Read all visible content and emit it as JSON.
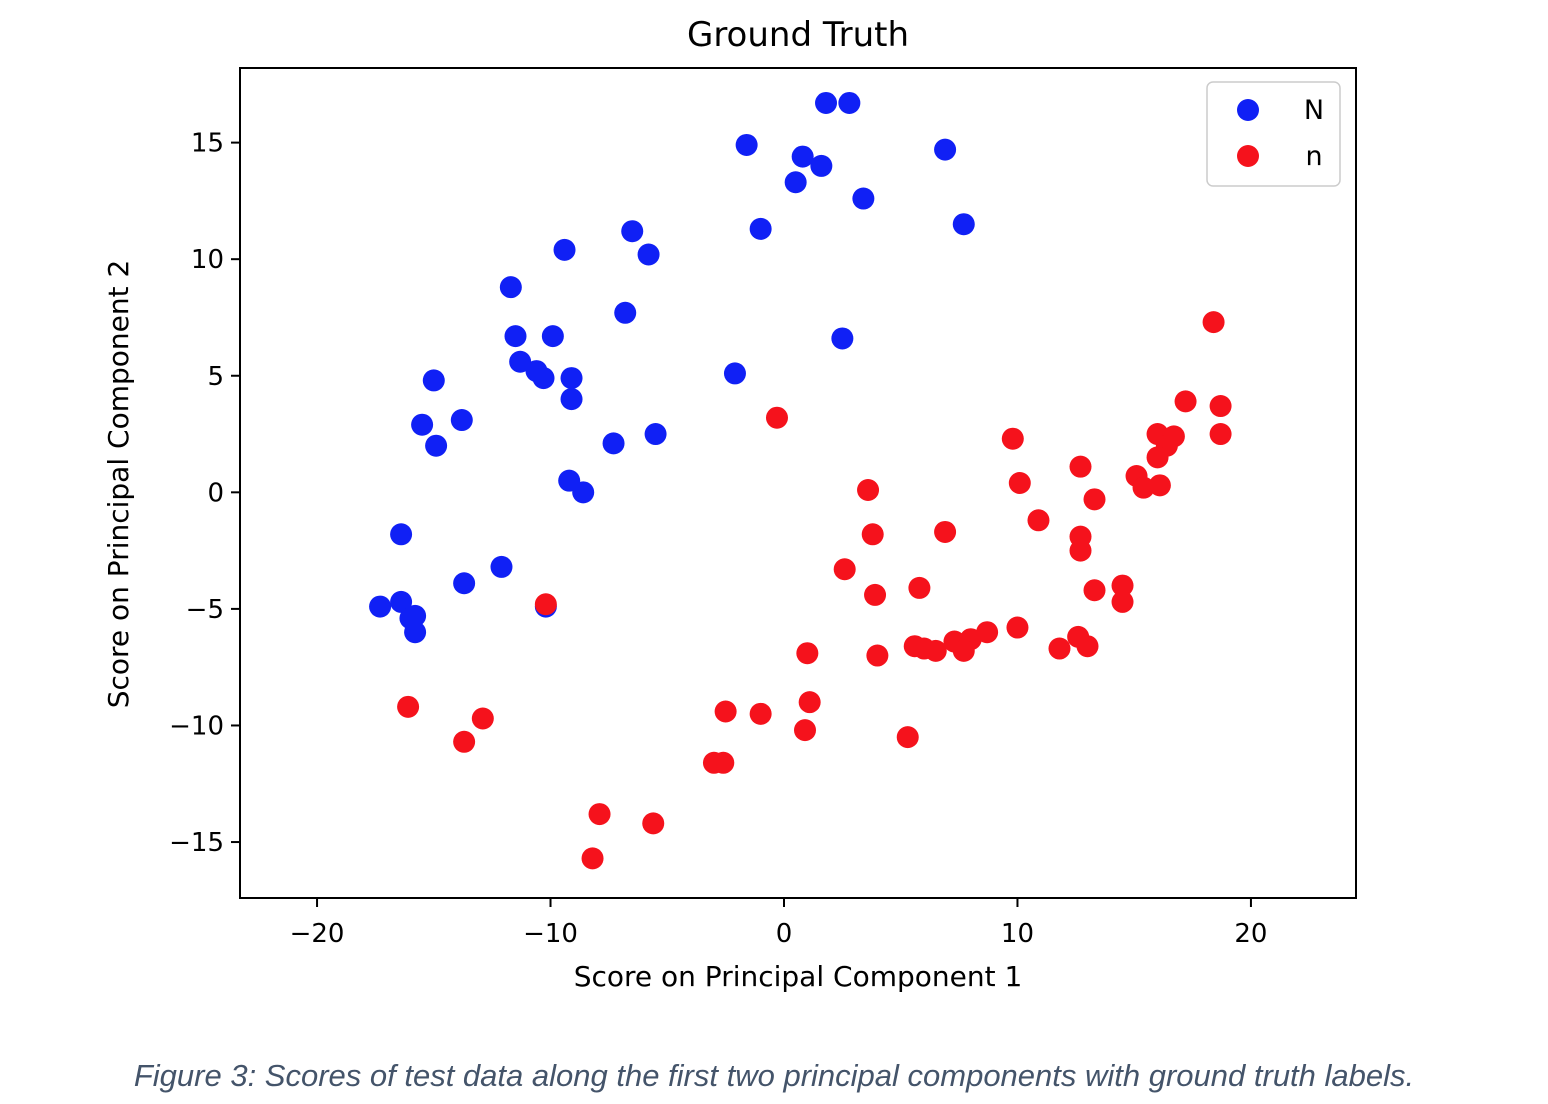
{
  "chart_data": {
    "type": "scatter",
    "title": "Ground Truth",
    "xlabel": "Score on Principal Component 1",
    "ylabel": "Score on Principal Component 2",
    "xlim": [
      -23.3,
      24.5
    ],
    "ylim": [
      -17.4,
      18.2
    ],
    "xticks": [
      -20,
      -10,
      0,
      10,
      20
    ],
    "yticks": [
      -15,
      -10,
      -5,
      0,
      5,
      10,
      15
    ],
    "grid": false,
    "legend_position": "top-right",
    "series": [
      {
        "name": "N",
        "color": "#1020f5",
        "points": [
          [
            1.8,
            16.7
          ],
          [
            2.8,
            16.7
          ],
          [
            -1.6,
            14.9
          ],
          [
            0.8,
            14.4
          ],
          [
            1.6,
            14.0
          ],
          [
            0.5,
            13.3
          ],
          [
            6.9,
            14.7
          ],
          [
            3.4,
            12.6
          ],
          [
            7.7,
            11.5
          ],
          [
            -1.0,
            11.3
          ],
          [
            -6.5,
            11.2
          ],
          [
            -5.8,
            10.2
          ],
          [
            -9.4,
            10.4
          ],
          [
            -11.7,
            8.8
          ],
          [
            -6.8,
            7.7
          ],
          [
            -11.5,
            6.7
          ],
          [
            -9.9,
            6.7
          ],
          [
            2.5,
            6.6
          ],
          [
            -11.3,
            5.6
          ],
          [
            -10.6,
            5.2
          ],
          [
            -10.3,
            4.9
          ],
          [
            -9.1,
            4.9
          ],
          [
            -2.1,
            5.1
          ],
          [
            -15.0,
            4.8
          ],
          [
            -9.1,
            4.0
          ],
          [
            -13.8,
            3.1
          ],
          [
            -15.5,
            2.9
          ],
          [
            -7.3,
            2.1
          ],
          [
            -5.5,
            2.5
          ],
          [
            -14.9,
            2.0
          ],
          [
            -9.2,
            0.5
          ],
          [
            -8.6,
            0.0
          ],
          [
            -16.4,
            -1.8
          ],
          [
            -12.1,
            -3.2
          ],
          [
            -13.7,
            -3.9
          ],
          [
            -17.3,
            -4.9
          ],
          [
            -16.4,
            -4.7
          ],
          [
            -16.0,
            -5.4
          ],
          [
            -15.8,
            -5.3
          ],
          [
            -15.8,
            -6.0
          ],
          [
            -10.2,
            -4.9
          ]
        ]
      },
      {
        "name": "n",
        "color": "#f5121c",
        "points": [
          [
            18.4,
            7.3
          ],
          [
            17.2,
            3.9
          ],
          [
            18.7,
            3.7
          ],
          [
            -0.3,
            3.2
          ],
          [
            16.0,
            2.5
          ],
          [
            16.7,
            2.4
          ],
          [
            9.8,
            2.3
          ],
          [
            18.7,
            2.5
          ],
          [
            16.4,
            2.0
          ],
          [
            16.0,
            1.5
          ],
          [
            12.7,
            1.1
          ],
          [
            15.1,
            0.7
          ],
          [
            15.4,
            0.2
          ],
          [
            16.1,
            0.3
          ],
          [
            10.1,
            0.4
          ],
          [
            3.6,
            0.1
          ],
          [
            13.3,
            -0.3
          ],
          [
            10.9,
            -1.2
          ],
          [
            3.8,
            -1.8
          ],
          [
            6.9,
            -1.7
          ],
          [
            12.7,
            -1.9
          ],
          [
            12.7,
            -2.5
          ],
          [
            2.6,
            -3.3
          ],
          [
            14.5,
            -4.0
          ],
          [
            5.8,
            -4.1
          ],
          [
            3.9,
            -4.4
          ],
          [
            13.3,
            -4.2
          ],
          [
            14.5,
            -4.7
          ],
          [
            -10.2,
            -4.8
          ],
          [
            10.0,
            -5.8
          ],
          [
            8.7,
            -6.0
          ],
          [
            12.6,
            -6.2
          ],
          [
            7.3,
            -6.4
          ],
          [
            8.0,
            -6.3
          ],
          [
            5.6,
            -6.6
          ],
          [
            6.0,
            -6.7
          ],
          [
            6.5,
            -6.8
          ],
          [
            7.7,
            -6.8
          ],
          [
            11.8,
            -6.7
          ],
          [
            13.0,
            -6.6
          ],
          [
            1.0,
            -6.9
          ],
          [
            4.0,
            -7.0
          ],
          [
            1.1,
            -9.0
          ],
          [
            -2.5,
            -9.4
          ],
          [
            -1.0,
            -9.5
          ],
          [
            -16.1,
            -9.2
          ],
          [
            -12.9,
            -9.7
          ],
          [
            0.9,
            -10.2
          ],
          [
            5.3,
            -10.5
          ],
          [
            -13.7,
            -10.7
          ],
          [
            -3.0,
            -11.6
          ],
          [
            -2.6,
            -11.6
          ],
          [
            -7.9,
            -13.8
          ],
          [
            -5.6,
            -14.2
          ],
          [
            -8.2,
            -15.7
          ]
        ]
      }
    ]
  },
  "caption": "Figure 3: Scores of test data along the first two principal components with ground truth labels."
}
